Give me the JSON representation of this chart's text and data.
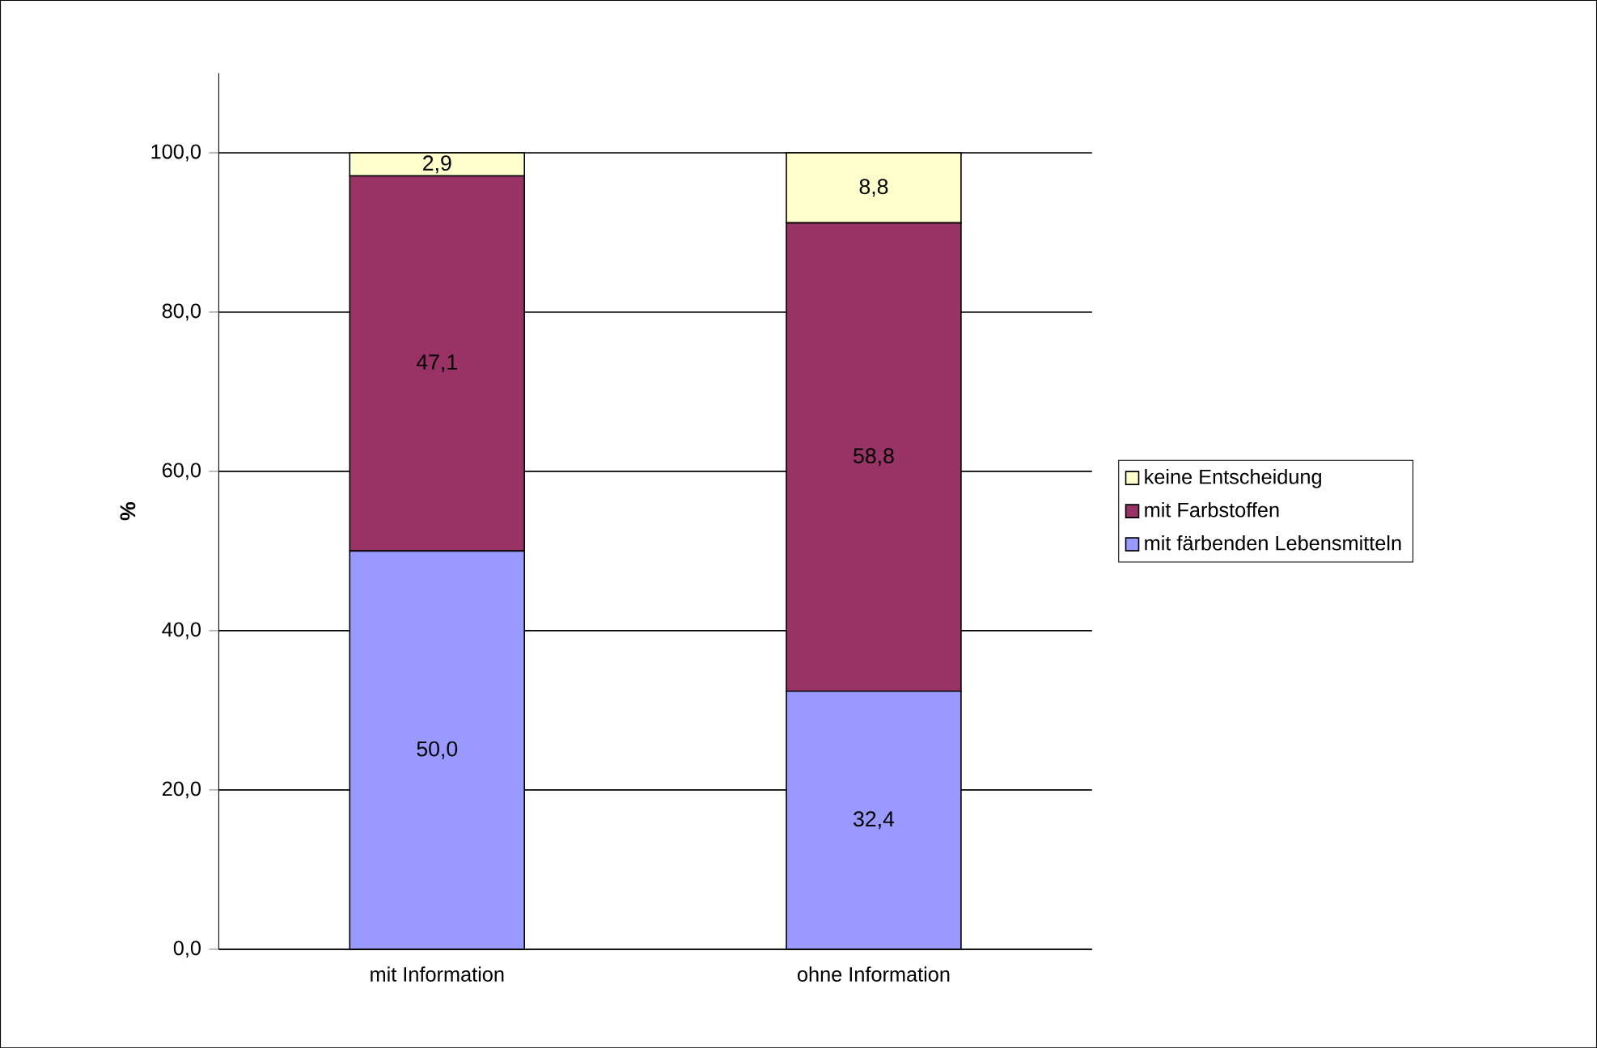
{
  "chart_data": {
    "type": "bar",
    "stacked": true,
    "ylabel": "%",
    "categories": [
      "mit Information",
      "ohne Information"
    ],
    "series": [
      {
        "name": "mit färbenden Lebensmitteln",
        "color": "#9999ff",
        "values": [
          50.0,
          32.4
        ],
        "value_labels": [
          "50,0",
          "32,4"
        ]
      },
      {
        "name": "mit Farbstoffen",
        "color": "#993366",
        "values": [
          47.1,
          58.8
        ],
        "value_labels": [
          "47,1",
          "58,8"
        ]
      },
      {
        "name": "keine Entscheidung",
        "color": "#ffffcc",
        "values": [
          2.9,
          8.8
        ],
        "value_labels": [
          "2,9",
          "8,8"
        ]
      }
    ],
    "ylim": [
      0,
      110
    ],
    "yticks": [
      {
        "value": 0,
        "label": "0,0"
      },
      {
        "value": 20,
        "label": "20,0"
      },
      {
        "value": 40,
        "label": "40,0"
      },
      {
        "value": 60,
        "label": "60,0"
      },
      {
        "value": 80,
        "label": "80,0"
      },
      {
        "value": 100,
        "label": "100,0"
      }
    ],
    "grid": "y",
    "legend": "right"
  }
}
